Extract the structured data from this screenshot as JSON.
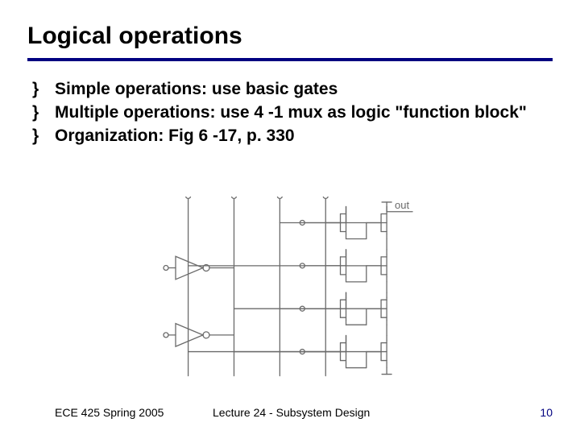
{
  "title": "Logical operations",
  "bullets": [
    "Simple operations: use basic gates",
    "Multiple operations: use 4 -1 mux as logic \"function block\"",
    "Organization: Fig 6 -17, p. 330"
  ],
  "figure": {
    "out_label": "out",
    "stroke": "#6a6a6a",
    "stroke_width": 1.3,
    "transistor_height": 28,
    "transistor_width": 22,
    "inverter_size": 34,
    "vertical_rails": [
      0.1,
      0.28,
      0.46,
      0.64
    ],
    "branch_rows": [
      0.14,
      0.37,
      0.6,
      0.83
    ],
    "vdd_y": 0.03,
    "out_y": 0.055
  },
  "footer": {
    "left": "ECE 425 Spring 2005",
    "center": "Lecture 24 - Subsystem Design",
    "page": "10"
  },
  "colors": {
    "rule": "#000080",
    "text": "#000000",
    "page_number": "#000080",
    "background": "#ffffff"
  }
}
